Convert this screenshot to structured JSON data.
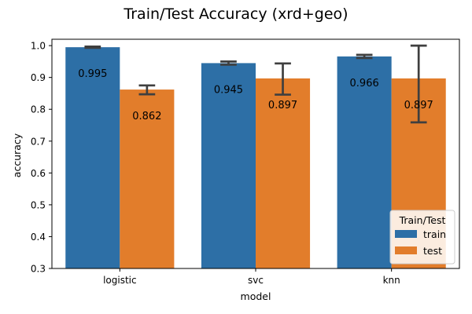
{
  "chart_data": {
    "type": "bar",
    "title": "Train/Test Accuracy (xrd+geo)",
    "xlabel": "model",
    "ylabel": "accuracy",
    "categories": [
      "logistic",
      "svc",
      "knn"
    ],
    "ylim": [
      0.3,
      1.02
    ],
    "yticks": [
      0.3,
      0.4,
      0.5,
      0.6,
      0.7,
      0.8,
      0.9,
      1.0
    ],
    "ytick_labels": [
      "0.3",
      "0.4",
      "0.5",
      "0.6",
      "0.7",
      "0.8",
      "0.9",
      "1.0"
    ],
    "grid": false,
    "legend": {
      "title": "Train/Test",
      "position": "lower-right"
    },
    "series": [
      {
        "name": "train",
        "color": "#2d6fa6",
        "values": [
          0.995,
          0.945,
          0.966
        ],
        "labels": [
          "0.995",
          "0.945",
          "0.966"
        ],
        "error_low": [
          0.993,
          0.94,
          0.961
        ],
        "error_high": [
          0.997,
          0.95,
          0.971
        ]
      },
      {
        "name": "test",
        "color": "#e27d2b",
        "values": [
          0.862,
          0.897,
          0.897
        ],
        "labels": [
          "0.862",
          "0.897",
          "0.897"
        ],
        "error_low": [
          0.847,
          0.846,
          0.759
        ],
        "error_high": [
          0.875,
          0.944,
          1.0
        ]
      }
    ],
    "error_bar_color": "#3f3f3f"
  }
}
